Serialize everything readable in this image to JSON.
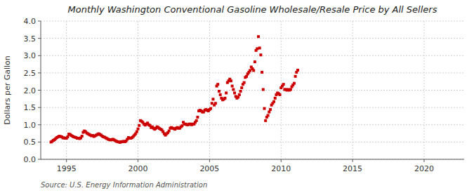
{
  "chart_data": {
    "type": "scatter",
    "title": "Monthly Washington Conventional Gasoline Wholesale/Resale Price by All Sellers",
    "ylabel": "Dollars per Gallon",
    "source": "Source: U.S. Energy Information Administration",
    "color": "#CC0000",
    "marker": "square",
    "grid": true,
    "xlim": [
      1993.2,
      2022.8
    ],
    "ylim": [
      0.0,
      4.0
    ],
    "xticks": [
      1995,
      2000,
      2005,
      2010,
      2015,
      2020
    ],
    "yticks": [
      {
        "value": 0.0,
        "label": "0.0"
      },
      0.5,
      {
        "value": 1.0,
        "label": "1.0"
      },
      1.5,
      {
        "value": 2.0,
        "label": "2.0"
      },
      2.5,
      {
        "value": 3.0,
        "label": "3.0"
      },
      3.5,
      {
        "value": 4.0,
        "label": "4.0"
      }
    ],
    "x": [
      1993.917,
      1994.0,
      1994.083,
      1994.167,
      1994.25,
      1994.333,
      1994.417,
      1994.5,
      1994.583,
      1994.667,
      1994.75,
      1994.833,
      1994.917,
      1995.0,
      1995.083,
      1995.167,
      1995.25,
      1995.333,
      1995.417,
      1995.5,
      1995.583,
      1995.667,
      1995.75,
      1995.833,
      1995.917,
      1996.0,
      1996.083,
      1996.167,
      1996.25,
      1996.333,
      1996.417,
      1996.5,
      1996.583,
      1996.667,
      1996.75,
      1996.833,
      1996.917,
      1997.0,
      1997.083,
      1997.167,
      1997.25,
      1997.333,
      1997.417,
      1997.5,
      1997.583,
      1997.667,
      1997.75,
      1997.833,
      1997.917,
      1998.0,
      1998.083,
      1998.167,
      1998.25,
      1998.333,
      1998.417,
      1998.5,
      1998.583,
      1998.667,
      1998.75,
      1998.833,
      1998.917,
      1999.0,
      1999.083,
      1999.167,
      1999.25,
      1999.333,
      1999.417,
      1999.5,
      1999.583,
      1999.667,
      1999.75,
      1999.833,
      1999.917,
      2000.0,
      2000.083,
      2000.167,
      2000.25,
      2000.333,
      2000.417,
      2000.5,
      2000.583,
      2000.667,
      2000.75,
      2000.833,
      2000.917,
      2001.0,
      2001.083,
      2001.167,
      2001.25,
      2001.333,
      2001.417,
      2001.5,
      2001.583,
      2001.667,
      2001.75,
      2001.833,
      2001.917,
      2002.0,
      2002.083,
      2002.167,
      2002.25,
      2002.333,
      2002.417,
      2002.5,
      2002.583,
      2002.667,
      2002.75,
      2002.833,
      2002.917,
      2003.0,
      2003.083,
      2003.167,
      2003.25,
      2003.333,
      2003.417,
      2003.5,
      2003.583,
      2003.667,
      2003.75,
      2003.833,
      2003.917,
      2004.0,
      2004.083,
      2004.167,
      2004.25,
      2004.333,
      2004.417,
      2004.5,
      2004.583,
      2004.667,
      2004.75,
      2004.833,
      2004.917,
      2005.0,
      2005.083,
      2005.167,
      2005.25,
      2005.333,
      2005.417,
      2005.5,
      2005.583,
      2005.667,
      2005.75,
      2005.833,
      2005.917,
      2006.0,
      2006.083,
      2006.167,
      2006.25,
      2006.333,
      2006.417,
      2006.5,
      2006.583,
      2006.667,
      2006.75,
      2006.833,
      2006.917,
      2007.0,
      2007.083,
      2007.167,
      2007.25,
      2007.333,
      2007.417,
      2007.5,
      2007.583,
      2007.667,
      2007.75,
      2007.833,
      2007.917,
      2008.0,
      2008.083,
      2008.167,
      2008.25,
      2008.333,
      2008.417,
      2008.5,
      2008.583,
      2008.667,
      2008.75,
      2008.833,
      2008.917,
      2009.0,
      2009.083,
      2009.167,
      2009.25,
      2009.333,
      2009.417,
      2009.5,
      2009.583,
      2009.667,
      2009.75,
      2009.833,
      2009.917,
      2010.0,
      2010.083,
      2010.167,
      2010.25,
      2010.333,
      2010.417,
      2010.5,
      2010.583,
      2010.667,
      2010.75,
      2010.833,
      2010.917,
      2011.0,
      2011.083,
      2011.167
    ],
    "values": [
      0.5,
      0.52,
      0.55,
      0.57,
      0.6,
      0.63,
      0.65,
      0.67,
      0.66,
      0.65,
      0.62,
      0.62,
      0.61,
      0.61,
      0.65,
      0.73,
      0.72,
      0.69,
      0.67,
      0.65,
      0.64,
      0.63,
      0.61,
      0.61,
      0.6,
      0.62,
      0.67,
      0.78,
      0.82,
      0.8,
      0.76,
      0.74,
      0.72,
      0.7,
      0.68,
      0.69,
      0.66,
      0.68,
      0.7,
      0.72,
      0.74,
      0.72,
      0.7,
      0.67,
      0.65,
      0.64,
      0.62,
      0.6,
      0.58,
      0.57,
      0.56,
      0.57,
      0.58,
      0.56,
      0.54,
      0.52,
      0.51,
      0.5,
      0.49,
      0.51,
      0.51,
      0.52,
      0.51,
      0.53,
      0.58,
      0.63,
      0.61,
      0.61,
      0.63,
      0.66,
      0.7,
      0.74,
      0.8,
      0.88,
      0.98,
      1.12,
      1.1,
      1.07,
      1.02,
      0.99,
      1.02,
      1.05,
      1.0,
      0.98,
      0.92,
      0.94,
      0.9,
      0.87,
      0.9,
      0.94,
      0.92,
      0.89,
      0.87,
      0.85,
      0.8,
      0.74,
      0.7,
      0.74,
      0.77,
      0.82,
      0.9,
      0.92,
      0.9,
      0.89,
      0.87,
      0.9,
      0.92,
      0.9,
      0.9,
      0.94,
      0.97,
      1.07,
      1.02,
      1.02,
      1.0,
      1.0,
      1.02,
      1.02,
      1.0,
      1.02,
      1.02,
      1.07,
      1.12,
      1.22,
      1.4,
      1.42,
      1.4,
      1.37,
      1.37,
      1.42,
      1.44,
      1.42,
      1.4,
      1.44,
      1.47,
      1.62,
      1.74,
      1.57,
      1.62,
      2.12,
      2.17,
      1.97,
      1.87,
      1.77,
      1.72,
      1.74,
      1.77,
      1.92,
      2.22,
      2.27,
      2.32,
      2.27,
      2.12,
      2.02,
      1.92,
      1.82,
      1.77,
      1.8,
      1.87,
      1.97,
      2.07,
      2.17,
      2.22,
      2.37,
      2.4,
      2.47,
      2.52,
      2.57,
      2.67,
      2.62,
      2.57,
      2.82,
      3.15,
      3.2,
      3.55,
      3.22,
      3.02,
      2.52,
      2.02,
      1.47,
      1.12,
      1.22,
      1.27,
      1.37,
      1.44,
      1.57,
      1.62,
      1.67,
      1.77,
      1.87,
      1.92,
      1.9,
      1.87,
      2.07,
      2.12,
      2.17,
      2.02,
      2.02,
      2.0,
      2.02,
      2.0,
      2.02,
      2.1,
      2.15,
      2.2,
      2.4,
      2.52,
      2.58
    ]
  }
}
